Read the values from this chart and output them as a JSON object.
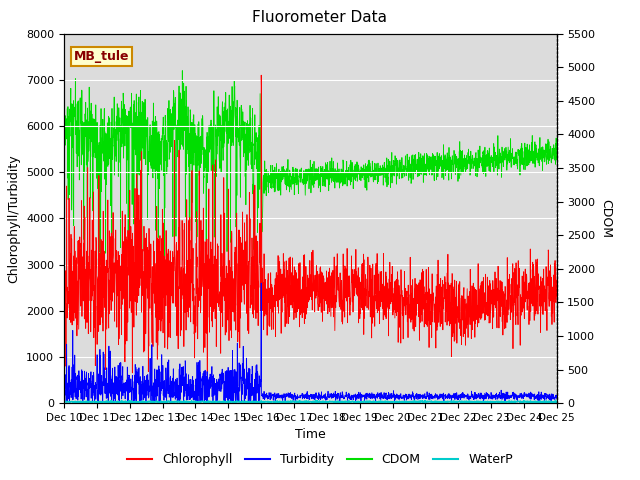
{
  "title": "Fluorometer Data",
  "xlabel": "Time",
  "ylabel_left": "Chlorophyll/Turbidity",
  "ylabel_right": "CDOM",
  "ylim_left": [
    0,
    8000
  ],
  "ylim_right": [
    0,
    5500
  ],
  "n_days": 15,
  "annotation_label": "MB_tule",
  "colors": {
    "chlorophyll": "#FF0000",
    "turbidity": "#0000FF",
    "cdom": "#00DD00",
    "waterp": "#00CCCC"
  },
  "legend_labels": [
    "Chlorophyll",
    "Turbidity",
    "CDOM",
    "WaterP"
  ],
  "background_color": "#DCDCDC",
  "fig_facecolor": "#FFFFFF",
  "xtick_labels": [
    "Dec 10",
    "Dec 11",
    "Dec 12",
    "Dec 13",
    "Dec 14",
    "Dec 15",
    "Dec 16",
    "Dec 17",
    "Dec 18",
    "Dec 19",
    "Dec 20",
    "Dec 21",
    "Dec 22",
    "Dec 23",
    "Dec 24",
    "Dec 25"
  ],
  "yticks_left": [
    0,
    1000,
    2000,
    3000,
    4000,
    5000,
    6000,
    7000,
    8000
  ],
  "yticks_right": [
    0,
    500,
    1000,
    1500,
    2000,
    2500,
    3000,
    3500,
    4000,
    4500,
    5000,
    5500
  ]
}
